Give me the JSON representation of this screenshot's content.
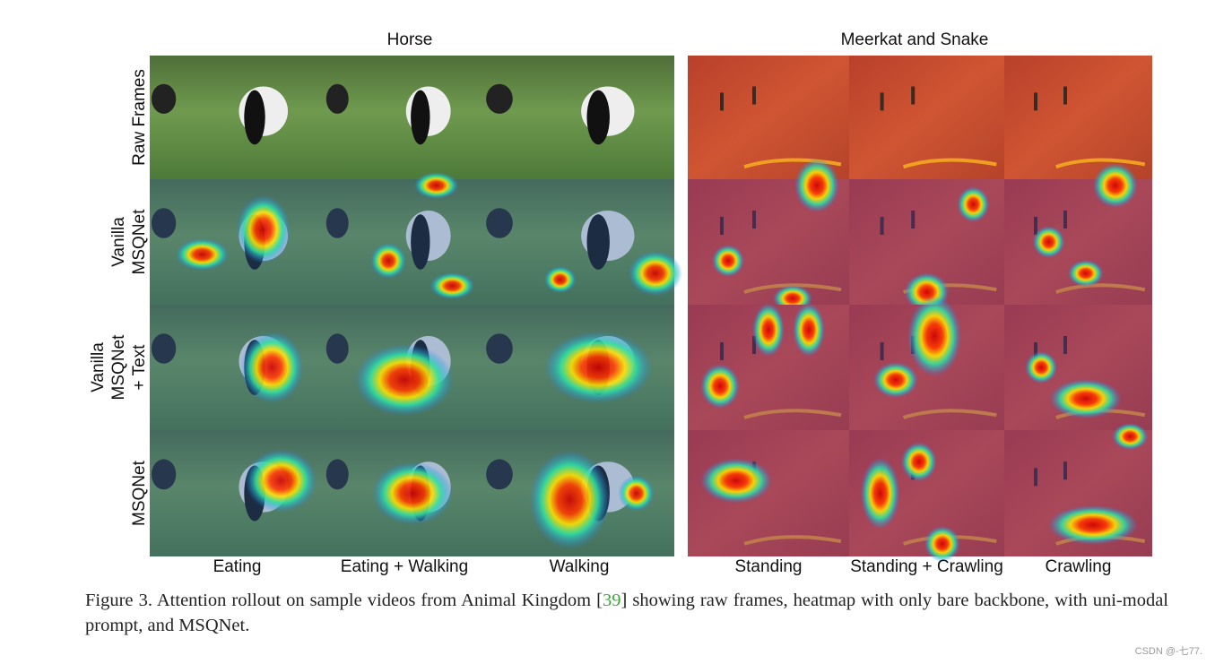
{
  "figure": {
    "groups": [
      "Horse",
      "Meerkat and Snake"
    ],
    "row_labels": [
      [
        "Raw Frames"
      ],
      [
        "Vanilla",
        "MSQNet"
      ],
      [
        "Vanilla",
        "MSQNet",
        "+ Text"
      ],
      [
        "MSQNet"
      ]
    ],
    "column_labels": [
      "Eating",
      "Eating + Walking",
      "Walking",
      "Standing",
      "Standing + Crawling",
      "Crawling"
    ],
    "caption": {
      "before": "Figure 3. Attention rollout on sample videos from Animal Kingdom [",
      "ref": "39",
      "after": "] showing raw frames, heatmap with only bare backbone, with uni-modal prompt, and MSQNet."
    }
  },
  "watermark": "CSDN @-七77."
}
